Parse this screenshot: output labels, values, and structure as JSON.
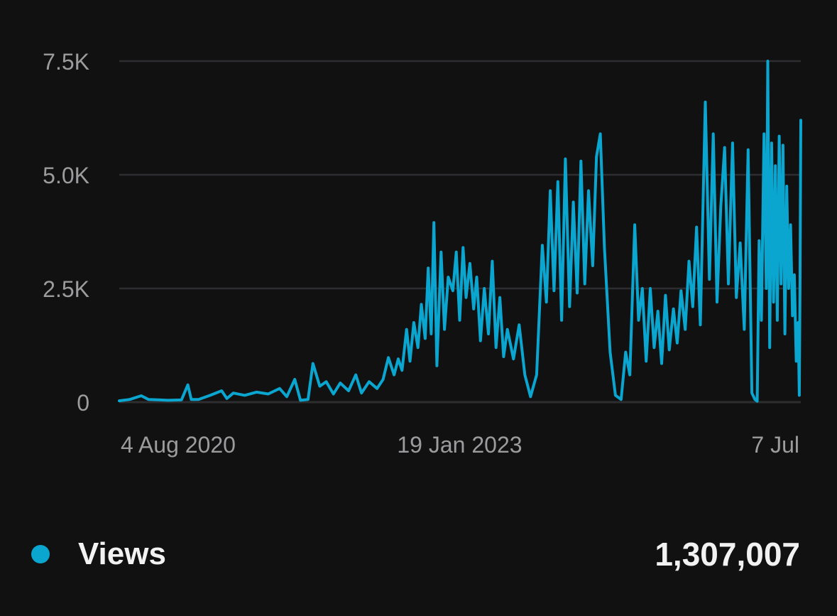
{
  "colors": {
    "background": "#111112",
    "series": "#0aa6d0",
    "grid": "#2e2e30",
    "tick_text": "#9c9c9e",
    "legend_text": "#f2f2f2"
  },
  "legend": {
    "icon": "legend-dot-icon",
    "label": "Views",
    "total": "1,307,007"
  },
  "chart_data": {
    "type": "line",
    "title": "",
    "xlabel": "",
    "ylabel": "",
    "grid": true,
    "legend_placement": "bottom",
    "ylim": [
      0,
      7500
    ],
    "yticks": [
      {
        "value": 7500,
        "label": "7.5K"
      },
      {
        "value": 5000,
        "label": "5.0K"
      },
      {
        "value": 2500,
        "label": "2.5K"
      },
      {
        "value": 0,
        "label": "0"
      }
    ],
    "xrange": [
      "2020-08-04",
      "2025-07-07"
    ],
    "xticks": [
      {
        "date": "2020-08-04",
        "label": "4 Aug 2020",
        "anchor": "start"
      },
      {
        "date": "2023-01-19",
        "label": "19 Jan 2023",
        "anchor": "middle"
      },
      {
        "date": "2025-07-07",
        "label": "7 Jul",
        "anchor": "end"
      }
    ],
    "series": [
      {
        "name": "Views",
        "points": [
          [
            "2020-08-04",
            30
          ],
          [
            "2020-09-01",
            60
          ],
          [
            "2020-10-01",
            140
          ],
          [
            "2020-10-20",
            60
          ],
          [
            "2020-11-15",
            50
          ],
          [
            "2020-12-10",
            40
          ],
          [
            "2021-01-15",
            50
          ],
          [
            "2021-02-01",
            380
          ],
          [
            "2021-02-10",
            60
          ],
          [
            "2021-03-01",
            60
          ],
          [
            "2021-04-01",
            150
          ],
          [
            "2021-05-01",
            250
          ],
          [
            "2021-05-15",
            80
          ],
          [
            "2021-06-01",
            200
          ],
          [
            "2021-07-01",
            150
          ],
          [
            "2021-08-01",
            220
          ],
          [
            "2021-09-01",
            180
          ],
          [
            "2021-10-01",
            300
          ],
          [
            "2021-10-20",
            120
          ],
          [
            "2021-11-10",
            500
          ],
          [
            "2021-11-25",
            40
          ],
          [
            "2021-12-15",
            60
          ],
          [
            "2021-12-28",
            850
          ],
          [
            "2022-01-15",
            350
          ],
          [
            "2022-02-01",
            450
          ],
          [
            "2022-02-20",
            180
          ],
          [
            "2022-03-10",
            420
          ],
          [
            "2022-04-01",
            250
          ],
          [
            "2022-04-20",
            600
          ],
          [
            "2022-05-05",
            200
          ],
          [
            "2022-05-25",
            450
          ],
          [
            "2022-06-15",
            300
          ],
          [
            "2022-07-01",
            500
          ],
          [
            "2022-07-15",
            980
          ],
          [
            "2022-07-30",
            600
          ],
          [
            "2022-08-10",
            950
          ],
          [
            "2022-08-20",
            700
          ],
          [
            "2022-09-01",
            1600
          ],
          [
            "2022-09-10",
            900
          ],
          [
            "2022-09-20",
            1750
          ],
          [
            "2022-10-01",
            1200
          ],
          [
            "2022-10-10",
            2150
          ],
          [
            "2022-10-20",
            1400
          ],
          [
            "2022-10-28",
            2950
          ],
          [
            "2022-11-05",
            1500
          ],
          [
            "2022-11-12",
            3950
          ],
          [
            "2022-11-20",
            800
          ],
          [
            "2022-12-01",
            3300
          ],
          [
            "2022-12-10",
            1600
          ],
          [
            "2022-12-20",
            2750
          ],
          [
            "2023-01-01",
            2450
          ],
          [
            "2023-01-10",
            3300
          ],
          [
            "2023-01-19",
            1800
          ],
          [
            "2023-01-28",
            3400
          ],
          [
            "2023-02-05",
            2300
          ],
          [
            "2023-02-15",
            3050
          ],
          [
            "2023-02-25",
            2050
          ],
          [
            "2023-03-05",
            2750
          ],
          [
            "2023-03-15",
            1350
          ],
          [
            "2023-03-25",
            2500
          ],
          [
            "2023-04-05",
            1500
          ],
          [
            "2023-04-15",
            3100
          ],
          [
            "2023-04-25",
            1200
          ],
          [
            "2023-05-05",
            2300
          ],
          [
            "2023-05-15",
            1000
          ],
          [
            "2023-05-25",
            1600
          ],
          [
            "2023-06-10",
            950
          ],
          [
            "2023-06-25",
            1700
          ],
          [
            "2023-07-10",
            600
          ],
          [
            "2023-07-25",
            120
          ],
          [
            "2023-08-10",
            600
          ],
          [
            "2023-08-25",
            3450
          ],
          [
            "2023-09-05",
            2200
          ],
          [
            "2023-09-15",
            4650
          ],
          [
            "2023-09-25",
            2450
          ],
          [
            "2023-10-05",
            4850
          ],
          [
            "2023-10-15",
            1800
          ],
          [
            "2023-10-25",
            5350
          ],
          [
            "2023-11-05",
            2100
          ],
          [
            "2023-11-15",
            4400
          ],
          [
            "2023-11-25",
            2400
          ],
          [
            "2023-12-05",
            5300
          ],
          [
            "2023-12-15",
            2600
          ],
          [
            "2023-12-25",
            4650
          ],
          [
            "2024-01-05",
            3000
          ],
          [
            "2024-01-15",
            5400
          ],
          [
            "2024-01-25",
            5900
          ],
          [
            "2024-02-05",
            3400
          ],
          [
            "2024-02-20",
            1100
          ],
          [
            "2024-03-05",
            150
          ],
          [
            "2024-03-20",
            60
          ],
          [
            "2024-04-01",
            1100
          ],
          [
            "2024-04-12",
            600
          ],
          [
            "2024-04-25",
            3900
          ],
          [
            "2024-05-05",
            1800
          ],
          [
            "2024-05-15",
            2500
          ],
          [
            "2024-05-25",
            900
          ],
          [
            "2024-06-05",
            2500
          ],
          [
            "2024-06-15",
            1200
          ],
          [
            "2024-06-25",
            2000
          ],
          [
            "2024-07-05",
            850
          ],
          [
            "2024-07-15",
            2350
          ],
          [
            "2024-07-25",
            1150
          ],
          [
            "2024-08-05",
            2050
          ],
          [
            "2024-08-15",
            1300
          ],
          [
            "2024-08-25",
            2450
          ],
          [
            "2024-09-05",
            1600
          ],
          [
            "2024-09-15",
            3100
          ],
          [
            "2024-09-25",
            2100
          ],
          [
            "2024-10-05",
            3850
          ],
          [
            "2024-10-15",
            1700
          ],
          [
            "2024-10-28",
            6600
          ],
          [
            "2024-11-08",
            2700
          ],
          [
            "2024-11-18",
            5900
          ],
          [
            "2024-11-28",
            2200
          ],
          [
            "2024-12-08",
            4300
          ],
          [
            "2024-12-18",
            5600
          ],
          [
            "2024-12-28",
            2600
          ],
          [
            "2025-01-08",
            5700
          ],
          [
            "2025-01-18",
            2300
          ],
          [
            "2025-01-28",
            3500
          ],
          [
            "2025-02-08",
            1600
          ],
          [
            "2025-02-18",
            5550
          ],
          [
            "2025-02-28",
            200
          ],
          [
            "2025-03-08",
            60
          ],
          [
            "2025-03-14",
            20
          ],
          [
            "2025-03-19",
            3550
          ],
          [
            "2025-03-25",
            1800
          ],
          [
            "2025-04-01",
            5900
          ],
          [
            "2025-04-07",
            2500
          ],
          [
            "2025-04-11",
            7500
          ],
          [
            "2025-04-16",
            1200
          ],
          [
            "2025-04-21",
            5700
          ],
          [
            "2025-04-26",
            2200
          ],
          [
            "2025-05-01",
            5200
          ],
          [
            "2025-05-06",
            1800
          ],
          [
            "2025-05-11",
            5850
          ],
          [
            "2025-05-16",
            2600
          ],
          [
            "2025-05-21",
            5650
          ],
          [
            "2025-05-26",
            1500
          ],
          [
            "2025-05-31",
            4750
          ],
          [
            "2025-06-05",
            2500
          ],
          [
            "2025-06-10",
            3900
          ],
          [
            "2025-06-15",
            1900
          ],
          [
            "2025-06-20",
            2800
          ],
          [
            "2025-06-25",
            900
          ],
          [
            "2025-06-30",
            1750
          ],
          [
            "2025-07-03",
            150
          ],
          [
            "2025-07-05",
            2500
          ],
          [
            "2025-07-07",
            6200
          ]
        ]
      }
    ]
  }
}
